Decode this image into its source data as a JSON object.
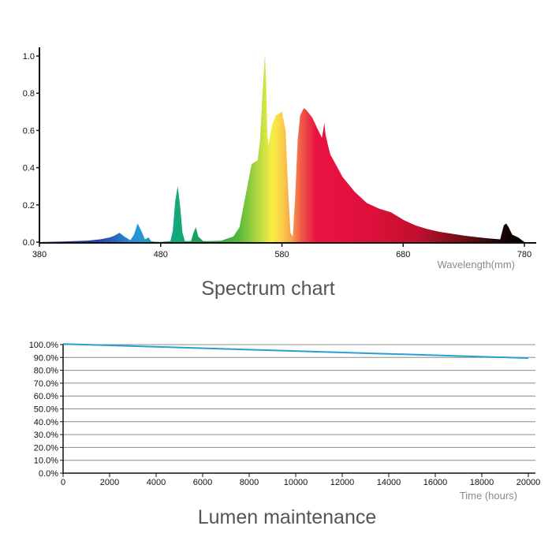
{
  "chart_data": [
    {
      "type": "area",
      "title": "Spectrum chart",
      "xlabel": "Wavelength(mm)",
      "ylabel": "",
      "xlim": [
        380,
        780
      ],
      "ylim": [
        0,
        1.0
      ],
      "x_ticks": [
        "380",
        "480",
        "580",
        "680",
        "780"
      ],
      "y_ticks": [
        "0.0",
        "0.2",
        "0.4",
        "0.6",
        "0.8",
        "1.0"
      ],
      "grid": false,
      "series": [
        {
          "x": [
            380,
            400,
            420,
            430,
            438,
            442,
            446,
            450,
            455,
            458,
            461,
            464,
            467,
            470,
            472,
            475,
            480,
            488,
            490,
            492,
            494,
            496,
            498,
            500,
            505,
            507,
            509,
            511,
            515,
            520,
            530,
            540,
            545,
            550,
            555,
            560,
            562,
            564,
            566,
            567,
            568,
            569,
            570,
            572,
            575,
            580,
            583,
            585,
            587,
            589,
            591,
            593,
            595,
            598,
            600,
            605,
            610,
            613,
            614,
            615,
            616,
            618,
            620,
            630,
            640,
            650,
            660,
            670,
            680,
            690,
            700,
            710,
            720,
            730,
            740,
            750,
            760,
            763,
            765,
            767,
            770,
            775,
            780
          ],
          "y": [
            0.0,
            0.003,
            0.008,
            0.015,
            0.025,
            0.035,
            0.05,
            0.03,
            0.01,
            0.04,
            0.1,
            0.06,
            0.015,
            0.025,
            0.005,
            0.002,
            0.001,
            0.005,
            0.06,
            0.22,
            0.3,
            0.2,
            0.05,
            0.005,
            0.005,
            0.05,
            0.08,
            0.03,
            0.005,
            0.005,
            0.007,
            0.03,
            0.08,
            0.25,
            0.42,
            0.44,
            0.55,
            0.8,
            1.01,
            0.85,
            0.58,
            0.52,
            0.56,
            0.63,
            0.68,
            0.7,
            0.6,
            0.3,
            0.05,
            0.03,
            0.25,
            0.55,
            0.68,
            0.72,
            0.71,
            0.67,
            0.6,
            0.56,
            0.6,
            0.64,
            0.58,
            0.52,
            0.47,
            0.35,
            0.27,
            0.21,
            0.18,
            0.16,
            0.12,
            0.09,
            0.07,
            0.055,
            0.045,
            0.035,
            0.027,
            0.02,
            0.015,
            0.09,
            0.1,
            0.08,
            0.04,
            0.025,
            0.0
          ]
        }
      ]
    },
    {
      "type": "line",
      "title": "Lumen maintenance",
      "xlabel": "Time (hours)",
      "ylabel": "",
      "xlim": [
        0,
        20000
      ],
      "ylim": [
        0,
        100
      ],
      "x_ticks": [
        "0",
        "2000",
        "4000",
        "6000",
        "8000",
        "10000",
        "12000",
        "14000",
        "16000",
        "18000",
        "20000"
      ],
      "y_ticks": [
        "0.0%",
        "10.0%",
        "20.0%",
        "30.0%",
        "40.0%",
        "50.0%",
        "60.0%",
        "70.0%",
        "80.0%",
        "90.0%",
        "100.0%"
      ],
      "grid": true,
      "line_color": "#2a9fd6",
      "series": [
        {
          "x": [
            0,
            20000
          ],
          "y": [
            100.5,
            89.5
          ]
        }
      ]
    }
  ]
}
